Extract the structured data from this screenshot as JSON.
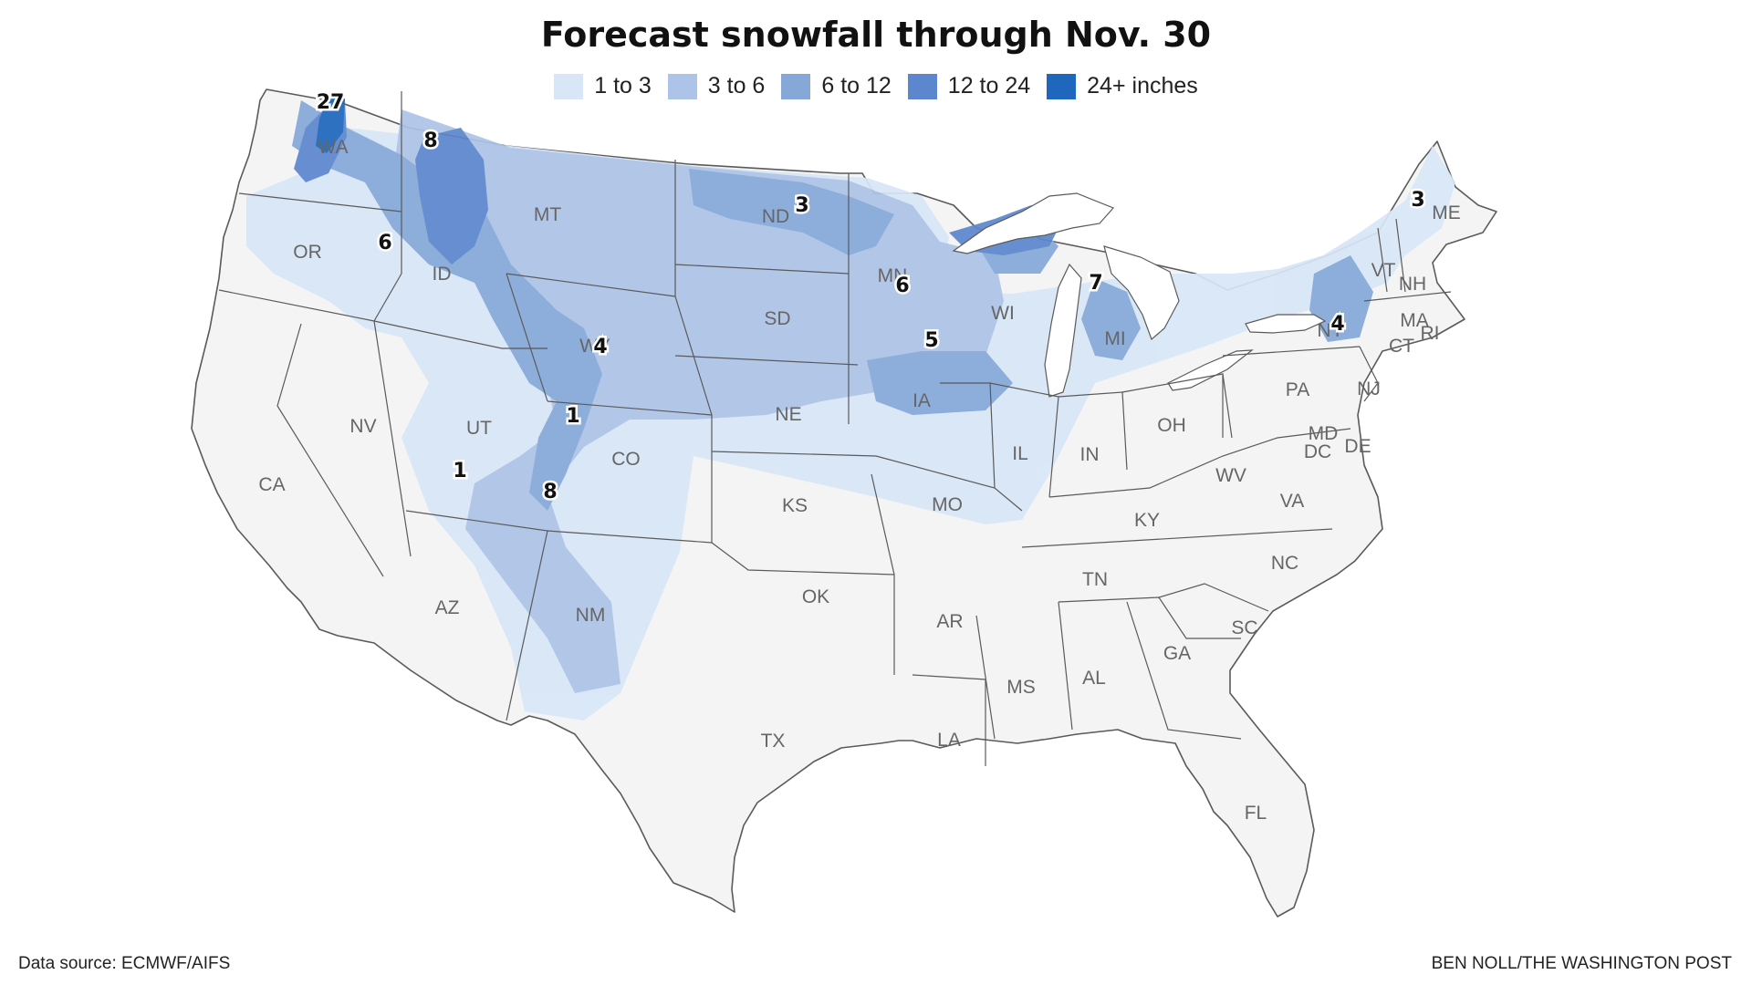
{
  "title": "Forecast snowfall through Nov. 30",
  "legend": [
    {
      "label": "1 to 3",
      "color": "#d8e6f7"
    },
    {
      "label": "3 to 6",
      "color": "#adc3e8"
    },
    {
      "label": "6 to 12",
      "color": "#85a8d8"
    },
    {
      "label": "12 to 24",
      "color": "#5c86cd"
    },
    {
      "label": "24+ inches",
      "color": "#1f66bd"
    }
  ],
  "colors": {
    "land": "#f4f4f4",
    "border": "#5a5a5a",
    "water": "#ffffff"
  },
  "state_labels": [
    "WA",
    "OR",
    "CA",
    "ID",
    "NV",
    "MT",
    "WY",
    "UT",
    "AZ",
    "CO",
    "NM",
    "ND",
    "SD",
    "NE",
    "KS",
    "OK",
    "TX",
    "MN",
    "IA",
    "MO",
    "AR",
    "LA",
    "WI",
    "IL",
    "MI",
    "IN",
    "OH",
    "KY",
    "TN",
    "MS",
    "AL",
    "GA",
    "FL",
    "SC",
    "NC",
    "VA",
    "WV",
    "PA",
    "NY",
    "VT",
    "NH",
    "ME",
    "MA",
    "CT",
    "RI",
    "NJ",
    "DE",
    "MD",
    "DC"
  ],
  "snowfall_labels": [
    "27",
    "8",
    "6",
    "3",
    "6",
    "5",
    "7",
    "4",
    "1",
    "1",
    "8",
    "3",
    "4"
  ],
  "source": "Data source: ECMWF/AIFS",
  "credit": "BEN NOLL/THE WASHINGTON POST"
}
